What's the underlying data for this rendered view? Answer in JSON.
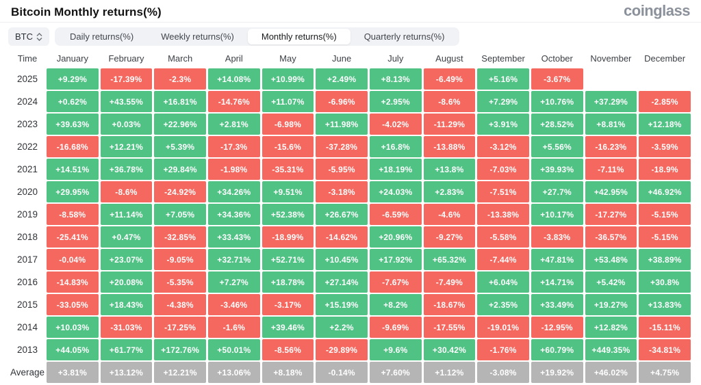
{
  "header": {
    "title": "Bitcoin Monthly returns(%)",
    "logo": "coinglass"
  },
  "controls": {
    "symbol_select": {
      "value": "BTC"
    },
    "tabs": [
      {
        "label": "Daily returns(%)",
        "active": false
      },
      {
        "label": "Weekly returns(%)",
        "active": false
      },
      {
        "label": "Monthly returns(%)",
        "active": true
      },
      {
        "label": "Quarterly returns(%)",
        "active": false
      }
    ]
  },
  "colors": {
    "positive": "#4fc284",
    "negative": "#f5685f",
    "average_bg": "#b5b5b6",
    "cell_text": "#ffffff"
  },
  "table": {
    "time_column_header": "Time",
    "columns": [
      "January",
      "February",
      "March",
      "April",
      "May",
      "June",
      "July",
      "August",
      "September",
      "October",
      "November",
      "December"
    ],
    "rows": [
      {
        "time": "2025",
        "is_average": false,
        "values": [
          "+9.29%",
          "-17.39%",
          "-2.3%",
          "+14.08%",
          "+10.99%",
          "+2.49%",
          "+8.13%",
          "-6.49%",
          "+5.16%",
          "-3.67%",
          null,
          null
        ]
      },
      {
        "time": "2024",
        "is_average": false,
        "values": [
          "+0.62%",
          "+43.55%",
          "+16.81%",
          "-14.76%",
          "+11.07%",
          "-6.96%",
          "+2.95%",
          "-8.6%",
          "+7.29%",
          "+10.76%",
          "+37.29%",
          "-2.85%"
        ]
      },
      {
        "time": "2023",
        "is_average": false,
        "values": [
          "+39.63%",
          "+0.03%",
          "+22.96%",
          "+2.81%",
          "-6.98%",
          "+11.98%",
          "-4.02%",
          "-11.29%",
          "+3.91%",
          "+28.52%",
          "+8.81%",
          "+12.18%"
        ]
      },
      {
        "time": "2022",
        "is_average": false,
        "values": [
          "-16.68%",
          "+12.21%",
          "+5.39%",
          "-17.3%",
          "-15.6%",
          "-37.28%",
          "+16.8%",
          "-13.88%",
          "-3.12%",
          "+5.56%",
          "-16.23%",
          "-3.59%"
        ]
      },
      {
        "time": "2021",
        "is_average": false,
        "values": [
          "+14.51%",
          "+36.78%",
          "+29.84%",
          "-1.98%",
          "-35.31%",
          "-5.95%",
          "+18.19%",
          "+13.8%",
          "-7.03%",
          "+39.93%",
          "-7.11%",
          "-18.9%"
        ]
      },
      {
        "time": "2020",
        "is_average": false,
        "values": [
          "+29.95%",
          "-8.6%",
          "-24.92%",
          "+34.26%",
          "+9.51%",
          "-3.18%",
          "+24.03%",
          "+2.83%",
          "-7.51%",
          "+27.7%",
          "+42.95%",
          "+46.92%"
        ]
      },
      {
        "time": "2019",
        "is_average": false,
        "values": [
          "-8.58%",
          "+11.14%",
          "+7.05%",
          "+34.36%",
          "+52.38%",
          "+26.67%",
          "-6.59%",
          "-4.6%",
          "-13.38%",
          "+10.17%",
          "-17.27%",
          "-5.15%"
        ]
      },
      {
        "time": "2018",
        "is_average": false,
        "values": [
          "-25.41%",
          "+0.47%",
          "-32.85%",
          "+33.43%",
          "-18.99%",
          "-14.62%",
          "+20.96%",
          "-9.27%",
          "-5.58%",
          "-3.83%",
          "-36.57%",
          "-5.15%"
        ]
      },
      {
        "time": "2017",
        "is_average": false,
        "values": [
          "-0.04%",
          "+23.07%",
          "-9.05%",
          "+32.71%",
          "+52.71%",
          "+10.45%",
          "+17.92%",
          "+65.32%",
          "-7.44%",
          "+47.81%",
          "+53.48%",
          "+38.89%"
        ]
      },
      {
        "time": "2016",
        "is_average": false,
        "values": [
          "-14.83%",
          "+20.08%",
          "-5.35%",
          "+7.27%",
          "+18.78%",
          "+27.14%",
          "-7.67%",
          "-7.49%",
          "+6.04%",
          "+14.71%",
          "+5.42%",
          "+30.8%"
        ]
      },
      {
        "time": "2015",
        "is_average": false,
        "values": [
          "-33.05%",
          "+18.43%",
          "-4.38%",
          "-3.46%",
          "-3.17%",
          "+15.19%",
          "+8.2%",
          "-18.67%",
          "+2.35%",
          "+33.49%",
          "+19.27%",
          "+13.83%"
        ]
      },
      {
        "time": "2014",
        "is_average": false,
        "values": [
          "+10.03%",
          "-31.03%",
          "-17.25%",
          "-1.6%",
          "+39.46%",
          "+2.2%",
          "-9.69%",
          "-17.55%",
          "-19.01%",
          "-12.95%",
          "+12.82%",
          "-15.11%"
        ]
      },
      {
        "time": "2013",
        "is_average": false,
        "values": [
          "+44.05%",
          "+61.77%",
          "+172.76%",
          "+50.01%",
          "-8.56%",
          "-29.89%",
          "+9.6%",
          "+30.42%",
          "-1.76%",
          "+60.79%",
          "+449.35%",
          "-34.81%"
        ]
      },
      {
        "time": "Average",
        "is_average": true,
        "values": [
          "+3.81%",
          "+13.12%",
          "+12.21%",
          "+13.06%",
          "+8.18%",
          "-0.14%",
          "+7.60%",
          "+1.12%",
          "-3.08%",
          "+19.92%",
          "+46.02%",
          "+4.75%"
        ]
      }
    ]
  }
}
